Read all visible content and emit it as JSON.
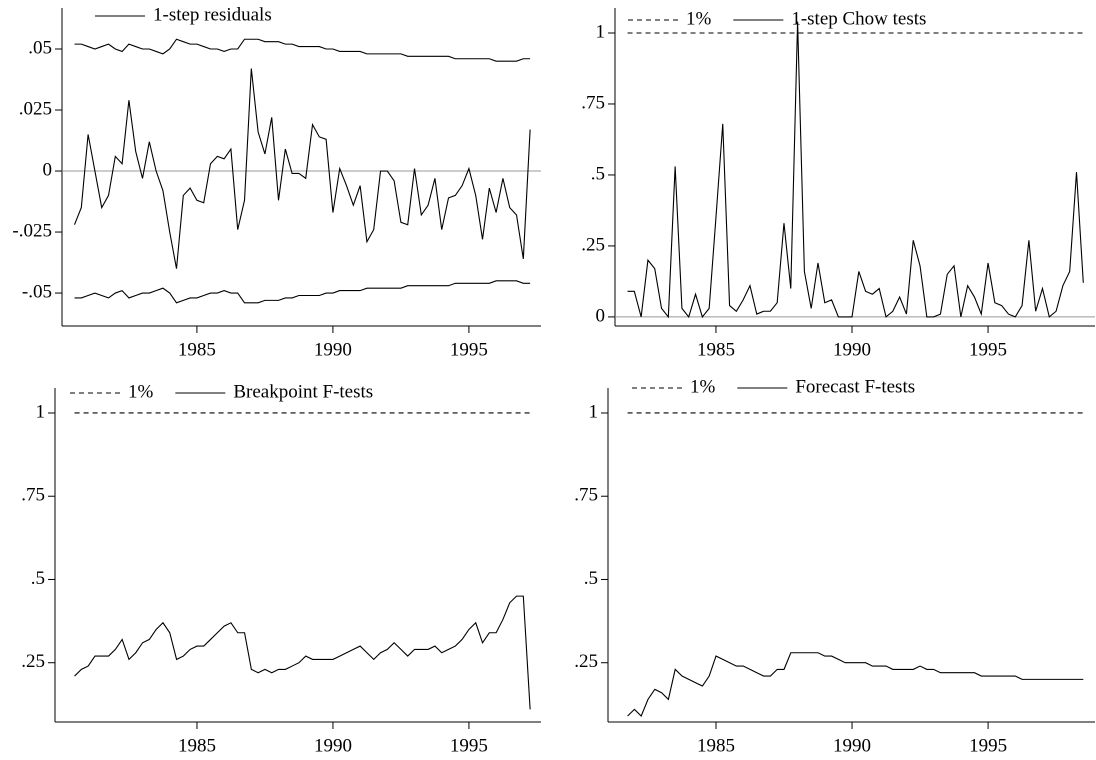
{
  "chart_data": [
    {
      "type": "line",
      "zero_line": true,
      "x": [
        1980.5,
        1980.75,
        1981,
        1981.25,
        1981.5,
        1981.75,
        1982,
        1982.25,
        1982.5,
        1982.75,
        1983,
        1983.25,
        1983.5,
        1983.75,
        1984,
        1984.25,
        1984.5,
        1984.75,
        1985,
        1985.25,
        1985.5,
        1985.75,
        1986,
        1986.25,
        1986.5,
        1986.75,
        1987,
        1987.25,
        1987.5,
        1987.75,
        1988,
        1988.25,
        1988.5,
        1988.75,
        1989,
        1989.25,
        1989.5,
        1989.75,
        1990,
        1990.25,
        1990.5,
        1990.75,
        1991,
        1991.25,
        1991.5,
        1991.75,
        1992,
        1992.25,
        1992.5,
        1992.75,
        1993,
        1993.25,
        1993.5,
        1993.75,
        1994,
        1994.25,
        1994.5,
        1994.75,
        1995,
        1995.25,
        1995.5,
        1995.75,
        1996,
        1996.25,
        1996.5,
        1996.75,
        1997,
        1997.25
      ],
      "xlim": [
        1980.04,
        1997.65
      ],
      "xticks": [
        1985,
        1990,
        1995
      ],
      "ylim": [
        -0.0635,
        0.0668
      ],
      "yticks": [
        {
          "value": -0.05,
          "label": "-.05"
        },
        {
          "value": -0.025,
          "label": "-.025"
        },
        0,
        {
          "value": 0.025,
          "label": ".025"
        },
        {
          "value": 0.05,
          "label": ".05"
        }
      ],
      "series": [
        {
          "name": "1-step residuals",
          "color": "#000000",
          "style": "solid",
          "values": [
            -0.022,
            -0.015,
            0.015,
            0.0,
            -0.015,
            -0.01,
            0.006,
            0.003,
            0.029,
            0.008,
            -0.003,
            0.012,
            0.0,
            -0.008,
            -0.025,
            -0.04,
            -0.01,
            -0.007,
            -0.012,
            -0.013,
            0.003,
            0.006,
            0.005,
            0.009,
            -0.024,
            -0.012,
            0.042,
            0.016,
            0.007,
            0.022,
            -0.012,
            0.009,
            -0.001,
            -0.001,
            -0.003,
            0.019,
            0.014,
            0.013,
            -0.017,
            0.001,
            -0.006,
            -0.014,
            -0.006,
            -0.029,
            -0.024,
            0.0,
            0.0,
            -0.004,
            -0.021,
            -0.022,
            0.001,
            -0.018,
            -0.014,
            -0.003,
            -0.024,
            -0.011,
            -0.01,
            -0.006,
            0.001,
            -0.01,
            -0.028,
            -0.007,
            -0.017,
            -0.003,
            -0.015,
            -0.018,
            -0.036,
            0.017
          ]
        },
        {
          "color": "#000000",
          "style": "solid",
          "values": [
            0.052,
            0.052,
            0.051,
            0.05,
            0.051,
            0.052,
            0.05,
            0.049,
            0.052,
            0.051,
            0.05,
            0.05,
            0.049,
            0.048,
            0.05,
            0.054,
            0.053,
            0.052,
            0.052,
            0.051,
            0.05,
            0.05,
            0.049,
            0.05,
            0.05,
            0.054,
            0.054,
            0.054,
            0.053,
            0.053,
            0.053,
            0.052,
            0.052,
            0.051,
            0.051,
            0.051,
            0.051,
            0.05,
            0.05,
            0.049,
            0.049,
            0.049,
            0.049,
            0.048,
            0.048,
            0.048,
            0.048,
            0.048,
            0.048,
            0.047,
            0.047,
            0.047,
            0.047,
            0.047,
            0.047,
            0.047,
            0.046,
            0.046,
            0.046,
            0.046,
            0.046,
            0.046,
            0.045,
            0.045,
            0.045,
            0.045,
            0.046,
            0.046
          ]
        },
        {
          "color": "#000000",
          "style": "solid",
          "values": [
            -0.052,
            -0.052,
            -0.051,
            -0.05,
            -0.051,
            -0.052,
            -0.05,
            -0.049,
            -0.052,
            -0.051,
            -0.05,
            -0.05,
            -0.049,
            -0.048,
            -0.05,
            -0.054,
            -0.053,
            -0.052,
            -0.052,
            -0.051,
            -0.05,
            -0.05,
            -0.049,
            -0.05,
            -0.05,
            -0.054,
            -0.054,
            -0.054,
            -0.053,
            -0.053,
            -0.053,
            -0.052,
            -0.052,
            -0.051,
            -0.051,
            -0.051,
            -0.051,
            -0.05,
            -0.05,
            -0.049,
            -0.049,
            -0.049,
            -0.049,
            -0.048,
            -0.048,
            -0.048,
            -0.048,
            -0.048,
            -0.048,
            -0.047,
            -0.047,
            -0.047,
            -0.047,
            -0.047,
            -0.047,
            -0.047,
            -0.046,
            -0.046,
            -0.046,
            -0.046,
            -0.046,
            -0.046,
            -0.045,
            -0.045,
            -0.045,
            -0.045,
            -0.046,
            -0.046
          ]
        }
      ]
    },
    {
      "type": "line",
      "zero_line": true,
      "x": [
        1981.75,
        1982,
        1982.25,
        1982.5,
        1982.75,
        1983,
        1983.25,
        1983.5,
        1983.75,
        1984,
        1984.25,
        1984.5,
        1984.75,
        1985,
        1985.25,
        1985.5,
        1985.75,
        1986,
        1986.25,
        1986.5,
        1986.75,
        1987,
        1987.25,
        1987.5,
        1987.75,
        1988,
        1988.25,
        1988.5,
        1988.75,
        1989,
        1989.25,
        1989.5,
        1989.75,
        1990,
        1990.25,
        1990.5,
        1990.75,
        1991,
        1991.25,
        1991.5,
        1991.75,
        1992,
        1992.25,
        1992.5,
        1992.75,
        1993,
        1993.25,
        1993.5,
        1993.75,
        1994,
        1994.25,
        1994.5,
        1994.75,
        1995,
        1995.25,
        1995.5,
        1995.75,
        1996,
        1996.25,
        1996.5,
        1996.75,
        1997,
        1997.25,
        1997.5,
        1997.75,
        1998,
        1998.25,
        1998.5
      ],
      "xlim": [
        1981.29,
        1998.93
      ],
      "xticks": [
        1985,
        1990,
        1995
      ],
      "ylim": [
        -0.032,
        1.088
      ],
      "yticks": [
        0,
        {
          "value": 0.25,
          "label": ".25"
        },
        {
          "value": 0.5,
          "label": ".5"
        },
        {
          "value": 0.75,
          "label": ".75"
        },
        1
      ],
      "series": [
        {
          "name": "1%",
          "color": "#000000",
          "style": "dashed",
          "values": [
            1,
            1,
            1,
            1,
            1,
            1,
            1,
            1,
            1,
            1,
            1,
            1,
            1,
            1,
            1,
            1,
            1,
            1,
            1,
            1,
            1,
            1,
            1,
            1,
            1,
            1,
            1,
            1,
            1,
            1,
            1,
            1,
            1,
            1,
            1,
            1,
            1,
            1,
            1,
            1,
            1,
            1,
            1,
            1,
            1,
            1,
            1,
            1,
            1,
            1,
            1,
            1,
            1,
            1,
            1,
            1,
            1,
            1,
            1,
            1,
            1,
            1,
            1,
            1,
            1,
            1,
            1,
            1
          ]
        },
        {
          "name": "1-step Chow tests",
          "color": "#000000",
          "style": "solid",
          "values": [
            0.09,
            0.09,
            0.0,
            0.2,
            0.17,
            0.03,
            0.0,
            0.53,
            0.03,
            0.0,
            0.08,
            0.0,
            0.03,
            0.35,
            0.68,
            0.04,
            0.02,
            0.06,
            0.11,
            0.01,
            0.02,
            0.02,
            0.05,
            0.33,
            0.1,
            1.04,
            0.16,
            0.03,
            0.19,
            0.05,
            0.06,
            0.0,
            0.0,
            0.0,
            0.16,
            0.09,
            0.08,
            0.1,
            0.0,
            0.02,
            0.07,
            0.01,
            0.27,
            0.18,
            0.0,
            0.0,
            0.01,
            0.15,
            0.18,
            0.0,
            0.11,
            0.07,
            0.01,
            0.19,
            0.05,
            0.04,
            0.01,
            0.0,
            0.04,
            0.27,
            0.02,
            0.1,
            0.0,
            0.02,
            0.11,
            0.16,
            0.51,
            0.12
          ]
        }
      ]
    },
    {
      "type": "line",
      "x": [
        1980.5,
        1980.75,
        1981,
        1981.25,
        1981.5,
        1981.75,
        1982,
        1982.25,
        1982.5,
        1982.75,
        1983,
        1983.25,
        1983.5,
        1983.75,
        1984,
        1984.25,
        1984.5,
        1984.75,
        1985,
        1985.25,
        1985.5,
        1985.75,
        1986,
        1986.25,
        1986.5,
        1986.75,
        1987,
        1987.25,
        1987.5,
        1987.75,
        1988,
        1988.25,
        1988.5,
        1988.75,
        1989,
        1989.25,
        1989.5,
        1989.75,
        1990,
        1990.25,
        1990.5,
        1990.75,
        1991,
        1991.25,
        1991.5,
        1991.75,
        1992,
        1992.25,
        1992.5,
        1992.75,
        1993,
        1993.25,
        1993.5,
        1993.75,
        1994,
        1994.25,
        1994.5,
        1994.75,
        1995,
        1995.25,
        1995.5,
        1995.75,
        1996,
        1996.25,
        1996.5,
        1996.75,
        1997,
        1997.25
      ],
      "xlim": [
        1979.78,
        1997.65
      ],
      "xticks": [
        1985,
        1990,
        1995
      ],
      "ylim": [
        0.072,
        1.075
      ],
      "yticks": [
        {
          "value": 0.25,
          "label": ".25"
        },
        {
          "value": 0.5,
          "label": ".5"
        },
        {
          "value": 0.75,
          "label": ".75"
        },
        1
      ],
      "series": [
        {
          "name": "1%",
          "color": "#000000",
          "style": "dashed",
          "values": [
            1,
            1,
            1,
            1,
            1,
            1,
            1,
            1,
            1,
            1,
            1,
            1,
            1,
            1,
            1,
            1,
            1,
            1,
            1,
            1,
            1,
            1,
            1,
            1,
            1,
            1,
            1,
            1,
            1,
            1,
            1,
            1,
            1,
            1,
            1,
            1,
            1,
            1,
            1,
            1,
            1,
            1,
            1,
            1,
            1,
            1,
            1,
            1,
            1,
            1,
            1,
            1,
            1,
            1,
            1,
            1,
            1,
            1,
            1,
            1,
            1,
            1,
            1,
            1,
            1,
            1,
            1,
            1
          ]
        },
        {
          "name": "Breakpoint F-tests",
          "color": "#000000",
          "style": "solid",
          "values": [
            0.21,
            0.23,
            0.24,
            0.27,
            0.27,
            0.27,
            0.29,
            0.32,
            0.26,
            0.28,
            0.31,
            0.32,
            0.35,
            0.37,
            0.34,
            0.26,
            0.27,
            0.29,
            0.3,
            0.3,
            0.32,
            0.34,
            0.36,
            0.37,
            0.34,
            0.34,
            0.23,
            0.22,
            0.23,
            0.22,
            0.23,
            0.23,
            0.24,
            0.25,
            0.27,
            0.26,
            0.26,
            0.26,
            0.26,
            0.27,
            0.28,
            0.29,
            0.3,
            0.28,
            0.26,
            0.28,
            0.29,
            0.31,
            0.29,
            0.27,
            0.29,
            0.29,
            0.29,
            0.3,
            0.28,
            0.29,
            0.3,
            0.32,
            0.35,
            0.37,
            0.31,
            0.34,
            0.34,
            0.38,
            0.43,
            0.45,
            0.45,
            0.11
          ]
        }
      ]
    },
    {
      "type": "line",
      "x": [
        1981.75,
        1982,
        1982.25,
        1982.5,
        1982.75,
        1983,
        1983.25,
        1983.5,
        1983.75,
        1984,
        1984.25,
        1984.5,
        1984.75,
        1985,
        1985.25,
        1985.5,
        1985.75,
        1986,
        1986.25,
        1986.5,
        1986.75,
        1987,
        1987.25,
        1987.5,
        1987.75,
        1988,
        1988.25,
        1988.5,
        1988.75,
        1989,
        1989.25,
        1989.5,
        1989.75,
        1990,
        1990.25,
        1990.5,
        1990.75,
        1991,
        1991.25,
        1991.5,
        1991.75,
        1992,
        1992.25,
        1992.5,
        1992.75,
        1993,
        1993.25,
        1993.5,
        1993.75,
        1994,
        1994.25,
        1994.5,
        1994.75,
        1995,
        1995.25,
        1995.5,
        1995.75,
        1996,
        1996.25,
        1996.5,
        1996.75,
        1997,
        1997.25,
        1997.5,
        1997.75,
        1998,
        1998.25,
        1998.5
      ],
      "xlim": [
        1981.03,
        1998.93
      ],
      "xticks": [
        1985,
        1990,
        1995
      ],
      "ylim": [
        0.072,
        1.075
      ],
      "yticks": [
        {
          "value": 0.25,
          "label": ".25"
        },
        {
          "value": 0.5,
          "label": ".5"
        },
        {
          "value": 0.75,
          "label": ".75"
        },
        1
      ],
      "series": [
        {
          "name": "1%",
          "color": "#000000",
          "style": "dashed",
          "values": [
            1,
            1,
            1,
            1,
            1,
            1,
            1,
            1,
            1,
            1,
            1,
            1,
            1,
            1,
            1,
            1,
            1,
            1,
            1,
            1,
            1,
            1,
            1,
            1,
            1,
            1,
            1,
            1,
            1,
            1,
            1,
            1,
            1,
            1,
            1,
            1,
            1,
            1,
            1,
            1,
            1,
            1,
            1,
            1,
            1,
            1,
            1,
            1,
            1,
            1,
            1,
            1,
            1,
            1,
            1,
            1,
            1,
            1,
            1,
            1,
            1,
            1,
            1,
            1,
            1,
            1,
            1,
            1
          ]
        },
        {
          "name": "Forecast F-tests",
          "color": "#000000",
          "style": "solid",
          "values": [
            0.09,
            0.11,
            0.09,
            0.14,
            0.17,
            0.16,
            0.14,
            0.23,
            0.21,
            0.2,
            0.19,
            0.18,
            0.21,
            0.27,
            0.26,
            0.25,
            0.24,
            0.24,
            0.23,
            0.22,
            0.21,
            0.21,
            0.23,
            0.23,
            0.28,
            0.28,
            0.28,
            0.28,
            0.28,
            0.27,
            0.27,
            0.26,
            0.25,
            0.25,
            0.25,
            0.25,
            0.24,
            0.24,
            0.24,
            0.23,
            0.23,
            0.23,
            0.23,
            0.24,
            0.23,
            0.23,
            0.22,
            0.22,
            0.22,
            0.22,
            0.22,
            0.22,
            0.21,
            0.21,
            0.21,
            0.21,
            0.21,
            0.21,
            0.2,
            0.2,
            0.2,
            0.2,
            0.2,
            0.2,
            0.2,
            0.2,
            0.2,
            0.2
          ]
        }
      ]
    }
  ]
}
